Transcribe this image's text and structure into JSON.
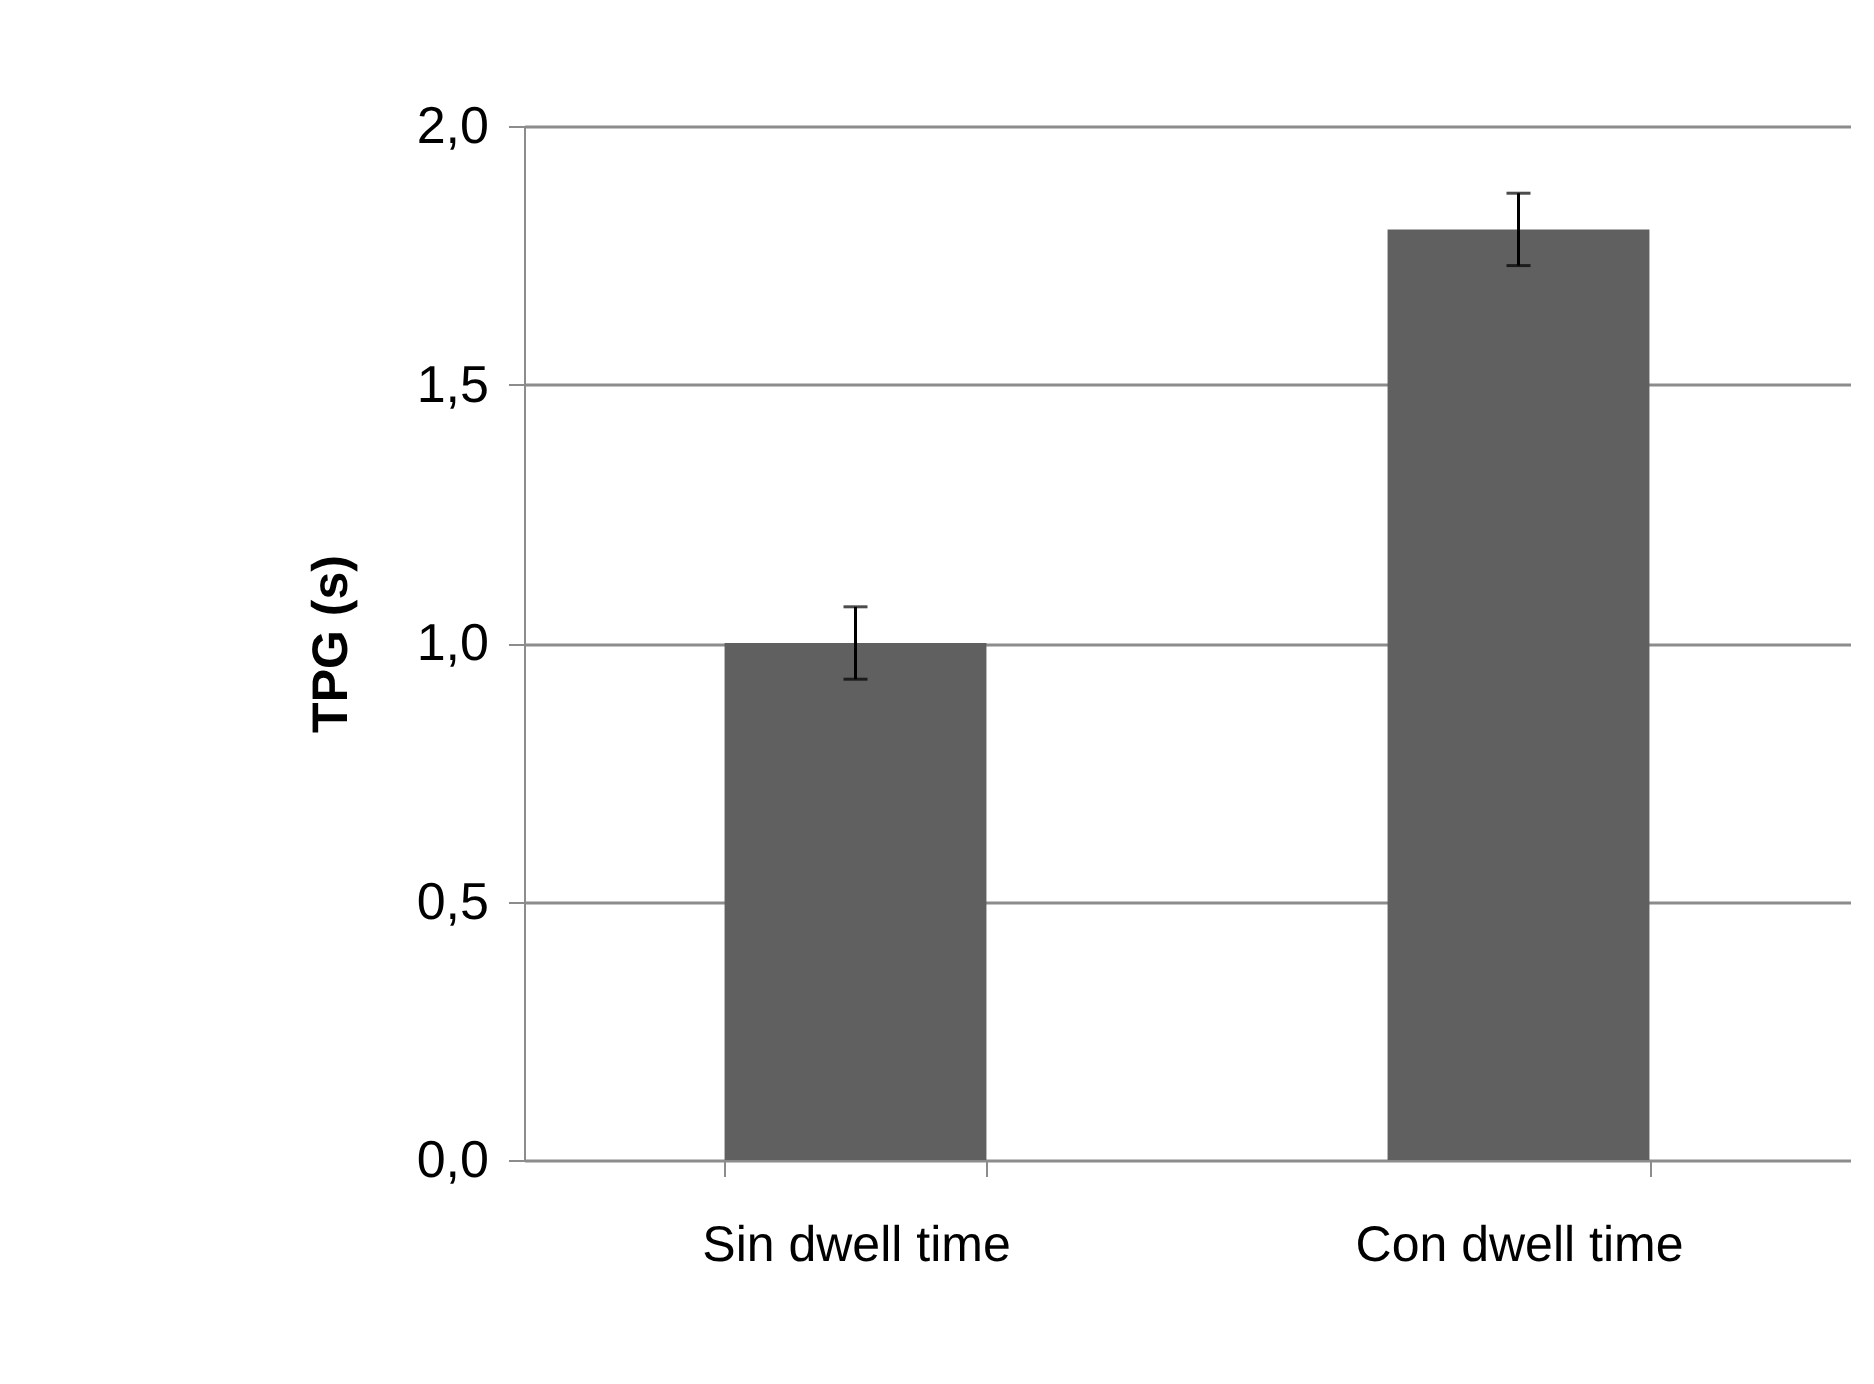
{
  "chart_data": {
    "type": "bar",
    "ylabel": "TPG (s)",
    "categories": [
      "Sin dwell time",
      "Con dwell time"
    ],
    "values": [
      1.0,
      1.8
    ],
    "errors": [
      0.07,
      0.07
    ],
    "color": "#606060",
    "ylim": [
      0,
      2
    ],
    "yticks": [
      {
        "value": 0,
        "label": "0,0"
      },
      {
        "value": 0.5,
        "label": "0,5"
      },
      {
        "value": 1,
        "label": "1,0"
      },
      {
        "value": 1.5,
        "label": "1,5"
      },
      {
        "value": 2,
        "label": "2,0"
      }
    ],
    "grid": "y"
  }
}
